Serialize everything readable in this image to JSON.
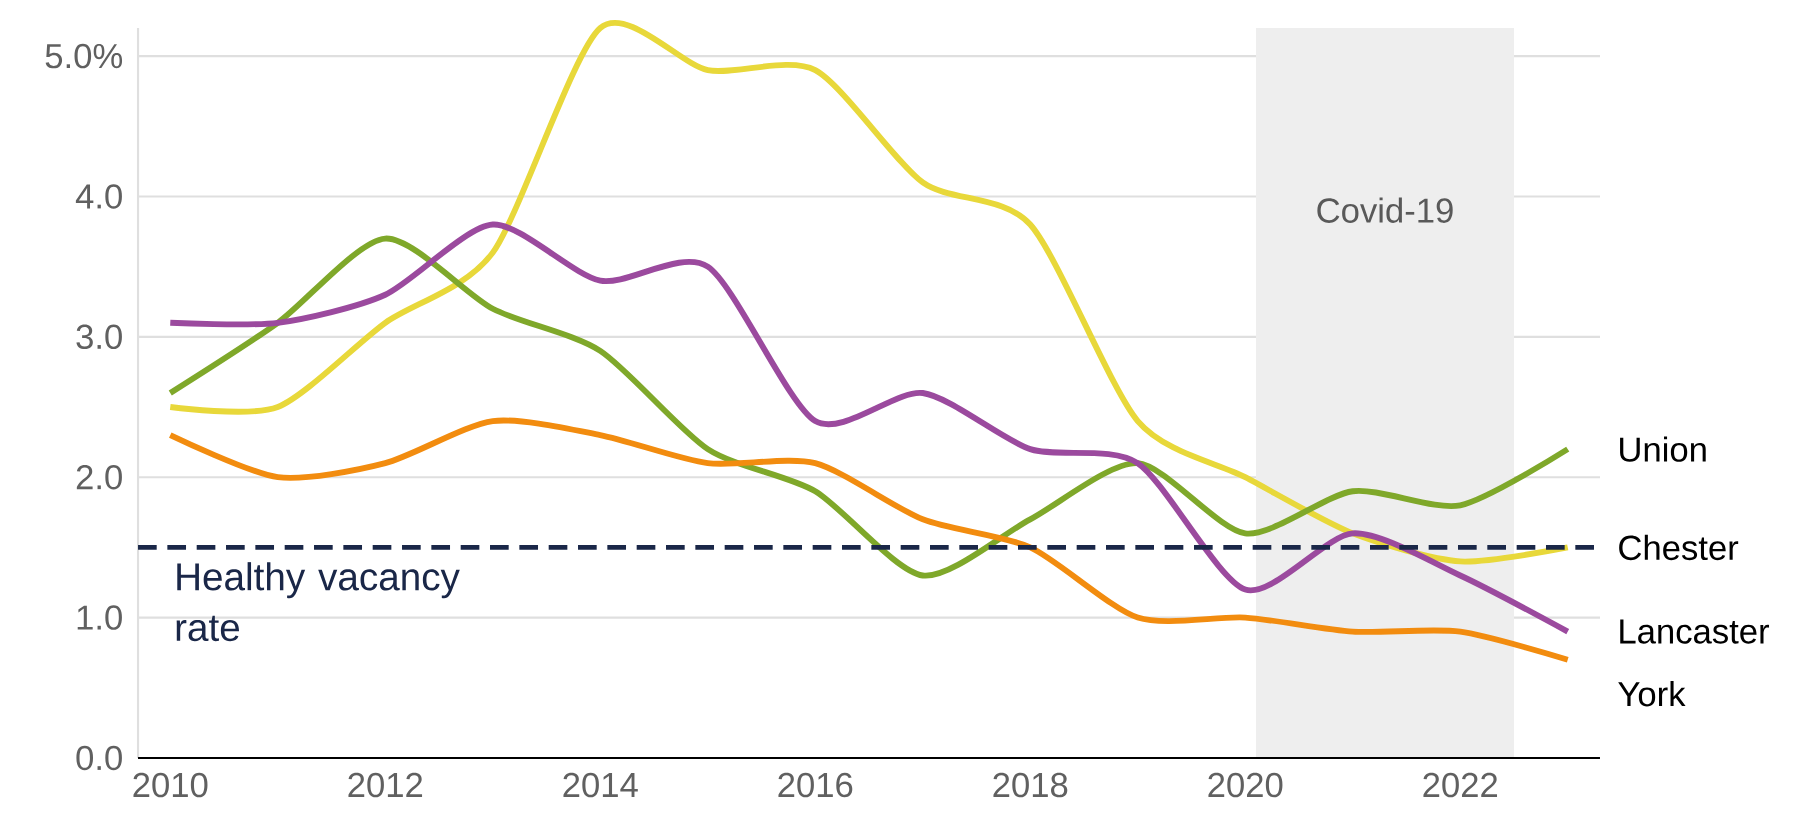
{
  "chart_data": {
    "type": "line",
    "x": [
      2010,
      2011,
      2012,
      2013,
      2014,
      2015,
      2016,
      2017,
      2018,
      2019,
      2020,
      2021,
      2022,
      2023
    ],
    "series": [
      {
        "name": "Chester",
        "color": "#e8d83a",
        "values": [
          2.5,
          2.5,
          3.1,
          3.6,
          5.2,
          4.9,
          4.9,
          4.1,
          3.8,
          2.4,
          2.0,
          1.6,
          1.4,
          1.5
        ]
      },
      {
        "name": "Union",
        "color": "#7fa82a",
        "values": [
          2.6,
          3.1,
          3.7,
          3.2,
          2.9,
          2.2,
          1.9,
          1.3,
          1.7,
          2.1,
          1.6,
          1.9,
          1.8,
          2.2
        ]
      },
      {
        "name": "Lancaster",
        "color": "#9b4a9e",
        "values": [
          3.1,
          3.1,
          3.3,
          3.8,
          3.4,
          3.5,
          2.4,
          2.6,
          2.2,
          2.1,
          1.2,
          1.6,
          1.3,
          0.9
        ]
      },
      {
        "name": "York",
        "color": "#f28c0f",
        "values": [
          2.3,
          2.0,
          2.1,
          2.4,
          2.3,
          2.1,
          2.1,
          1.7,
          1.5,
          1.0,
          1.0,
          0.9,
          0.9,
          0.7
        ]
      }
    ],
    "xlim": [
      2009.7,
      2023.3
    ],
    "ylim": [
      0,
      5.2
    ],
    "xticks": [
      2010,
      2012,
      2014,
      2016,
      2018,
      2020,
      2022
    ],
    "yticks": [
      {
        "value": 0,
        "label": "0.0"
      },
      {
        "value": 1,
        "label": "1.0"
      },
      {
        "value": 2,
        "label": "2.0"
      },
      {
        "value": 3,
        "label": "3.0"
      },
      {
        "value": 4,
        "label": "4.0"
      },
      {
        "value": 5,
        "label": "5.0%"
      }
    ],
    "grid": "y",
    "legend": false,
    "ref_lines": [
      {
        "axis": "y",
        "value": 1.5,
        "label": "Healthy vacancy rate",
        "color": "#1a2748",
        "line_style": "dashed"
      }
    ],
    "bands": [
      {
        "axis": "x",
        "from": 2020.1,
        "to": 2022.5,
        "label": "Covid-19",
        "color": "#eeeeee"
      }
    ]
  }
}
